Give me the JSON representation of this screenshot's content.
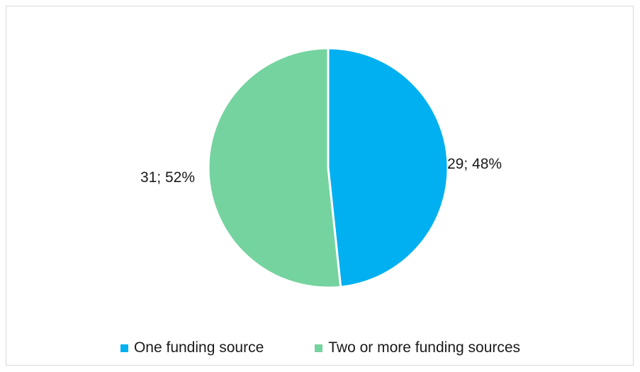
{
  "chart_data": {
    "type": "pie",
    "categories": [
      "One funding source",
      "Two or more funding sources"
    ],
    "values": [
      29,
      31
    ],
    "percentages": [
      "48%",
      "52%"
    ],
    "data_labels": [
      "29; 48%",
      "31; 52%"
    ],
    "colors": [
      "#00b0f0",
      "#75d39f"
    ],
    "legend_position": "bottom",
    "start_angle_deg": 0,
    "direction": "clockwise"
  },
  "legend": {
    "items": [
      {
        "label": "One funding source",
        "color": "#00b0f0"
      },
      {
        "label": "Two or more funding sources",
        "color": "#75d39f"
      }
    ]
  }
}
